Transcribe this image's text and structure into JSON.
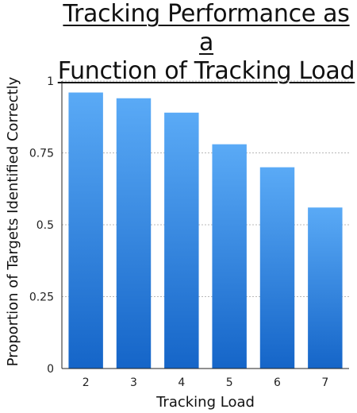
{
  "chart_data": {
    "type": "bar",
    "title_lines": [
      "Tracking Performance as a",
      "Function of Tracking Load"
    ],
    "title": "Tracking Performance as a Function of Tracking Load",
    "xlabel": "Tracking Load",
    "ylabel": "Proportion of Targets Identified Correctly",
    "categories": [
      "2",
      "3",
      "4",
      "5",
      "6",
      "7"
    ],
    "values": [
      0.96,
      0.94,
      0.89,
      0.78,
      0.7,
      0.56
    ],
    "ylim": [
      0,
      1
    ],
    "yticks": [
      0,
      0.25,
      0.5,
      0.75,
      1
    ],
    "ytick_labels": [
      "0",
      "0.25",
      "0.5",
      "0.75",
      "1"
    ],
    "grid": true,
    "bar_color_top": "#5aaaf6",
    "bar_color_bottom": "#1565c8"
  }
}
